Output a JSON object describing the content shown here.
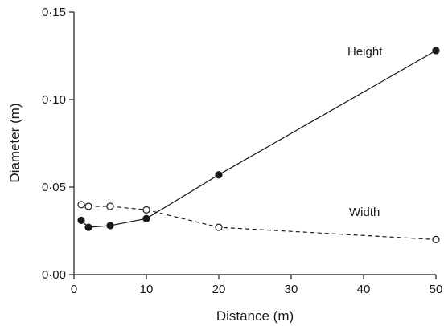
{
  "chart_data": {
    "type": "line",
    "xlabel": "Distance (m)",
    "ylabel": "Diameter (m)",
    "xlim": [
      0,
      50
    ],
    "ylim": [
      0,
      0.15
    ],
    "x_ticks": [
      0,
      10,
      20,
      30,
      40,
      50
    ],
    "x_tick_labels": [
      "0",
      "10",
      "20",
      "30",
      "40",
      "50"
    ],
    "y_ticks": [
      0,
      0.05,
      0.1,
      0.15
    ],
    "y_tick_labels": [
      "0·00",
      "0·05",
      "0·10",
      "0·15"
    ],
    "grid": false,
    "series": [
      {
        "name": "Height",
        "marker": "filled-circle",
        "line": "solid",
        "x": [
          1,
          2,
          5,
          10,
          20,
          50
        ],
        "y": [
          0.031,
          0.027,
          0.028,
          0.032,
          0.057,
          0.128
        ]
      },
      {
        "name": "Width",
        "marker": "open-circle",
        "line": "dashed",
        "x": [
          1,
          2,
          5,
          10,
          20,
          50
        ],
        "y": [
          0.04,
          0.039,
          0.039,
          0.037,
          0.027,
          0.02
        ]
      }
    ]
  }
}
